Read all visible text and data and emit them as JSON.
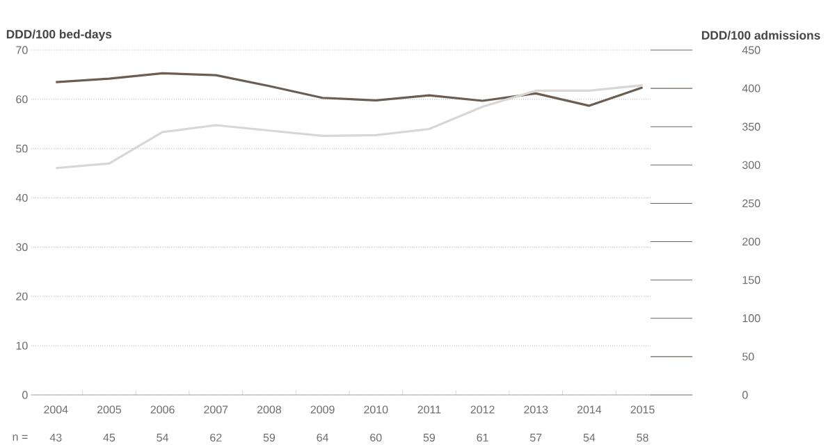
{
  "chart_data": {
    "type": "line",
    "ylabel": "DDD/100 bed-days",
    "y2label": "DDD/100 admissions",
    "categories": [
      "2004",
      "2005",
      "2006",
      "2007",
      "2008",
      "2009",
      "2010",
      "2011",
      "2012",
      "2013",
      "2014",
      "2015"
    ],
    "series": [
      {
        "color": "#6b5d52",
        "values": [
          63.5,
          64.2,
          65.3,
          64.9,
          62.7,
          60.3,
          59.8,
          60.8,
          59.7,
          61.2,
          58.7,
          62.4
        ]
      },
      {
        "color": "#d9d6d3",
        "axis": "y2",
        "values": [
          296,
          302,
          343,
          352,
          345,
          338,
          339,
          347,
          376,
          397,
          397,
          404
        ]
      }
    ],
    "ylim": [
      0,
      70
    ],
    "yticks": [
      0,
      10,
      20,
      30,
      40,
      50,
      60,
      70
    ],
    "y2lim": [
      0,
      450
    ],
    "y2ticks": [
      0,
      50,
      100,
      150,
      200,
      250,
      300,
      350,
      400,
      450
    ],
    "grid": "y",
    "marker": "none",
    "line_style": "solid",
    "annotations": [
      "n =",
      "43",
      "45",
      "54",
      "62",
      "59",
      "64",
      "60",
      "59",
      "61",
      "57",
      "54",
      "58"
    ]
  }
}
